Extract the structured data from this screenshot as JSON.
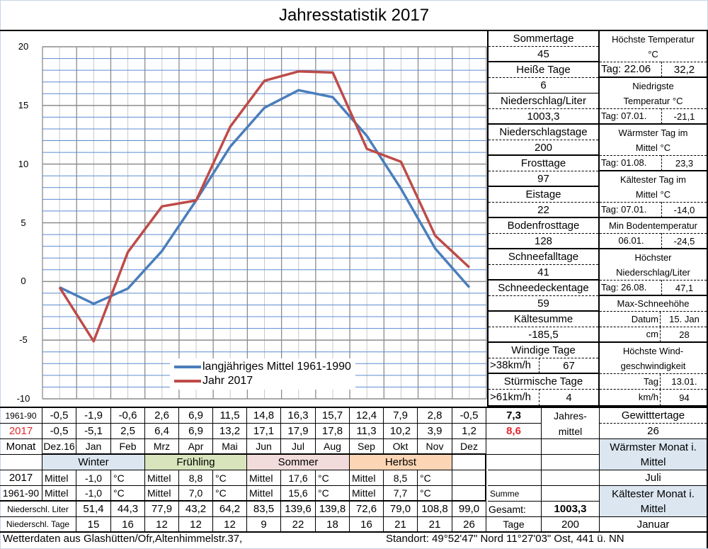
{
  "title": "Jahresstatistik 2017",
  "chart_data": {
    "type": "line",
    "title": "Jahresstatistik 2017",
    "categories": [
      "Dez.16",
      "Jan",
      "Feb",
      "Mrz",
      "Apr",
      "Mai",
      "Jun",
      "Jul",
      "Aug",
      "Sep",
      "Okt",
      "Nov",
      "Dez"
    ],
    "series": [
      {
        "name": "langjähriges Mittel 1961-1990",
        "color": "#4a7ebb",
        "values": [
          -0.5,
          -1.9,
          -0.6,
          2.6,
          6.9,
          11.5,
          14.8,
          16.3,
          15.7,
          12.4,
          7.9,
          2.8,
          -0.5
        ]
      },
      {
        "name": "Jahr 2017",
        "color": "#be4b48",
        "values": [
          -0.5,
          -5.1,
          2.5,
          6.4,
          6.9,
          13.2,
          17.1,
          17.9,
          17.8,
          11.3,
          10.2,
          3.9,
          1.2
        ]
      }
    ],
    "yticks": [
      "20",
      "15",
      "10",
      "5",
      "0",
      "-5",
      "-10"
    ],
    "ylim": [
      -10,
      20
    ],
    "xlabel": "",
    "ylabel": "",
    "grid": true,
    "legend_position": "lower center inside"
  },
  "legend": {
    "items": [
      {
        "label": "langjähriges Mittel 1961-1990",
        "color": "#4a7ebb"
      },
      {
        "label": "Jahr 2017",
        "color": "#be4b48"
      }
    ]
  },
  "right_panel": {
    "sommertage_label": "Sommertage",
    "sommertage_value": "45",
    "heisse_tage_label": "Heiße Tage",
    "heisse_tage_value": "6",
    "niederschlag_label": "Niederschlag/Liter",
    "niederschlag_value": "1003,3",
    "niederschlagstage_label": "Niederschlagstage",
    "niederschlagstage_value": "200",
    "frosttage_label": "Frosttage",
    "frosttage_value": "97",
    "eistage_label": "Eistage",
    "eistage_value": "22",
    "bodenfrosttage_label": "Bodenfrosttage",
    "bodenfrosttage_value": "128",
    "schneefalltage_label": "Schneefalltage",
    "schneefalltage_value": "41",
    "schneedeckentage_label": "Schneedeckentage",
    "schneedeckentage_value": "59",
    "kaeltesumme_label": "Kältesumme",
    "kaeltesumme_value": "-185,5",
    "windige_tage_label": "Windige Tage",
    "windige_tage_threshold": ">38km/h",
    "windige_tage_value": "67",
    "stuermische_tage_label": "Stürmische Tage",
    "stuermische_tage_threshold": ">61km/h",
    "stuermische_tage_value": "4",
    "hoechste_temp_label1": "Höchste Temperatur",
    "hoechste_temp_label2": "°C",
    "hoechste_temp_day": "Tag: 22.06",
    "hoechste_temp_value": "32,2",
    "niedrigste_temp_label1": "Niedrigste",
    "niedrigste_temp_label2": "Temperatur °C",
    "niedrigste_temp_day": "Tag: 07.01.",
    "niedrigste_temp_value": "-21,1",
    "waermster_tag_label1": "Wärmster Tag im",
    "waermster_tag_label2": "Mittel °C",
    "waermster_tag_day": "Tag: 01.08.",
    "waermster_tag_value": "23,3",
    "kaeltester_tag_label1": "Kältester Tag im",
    "kaeltester_tag_label2": "Mittel °C",
    "kaeltester_tag_day": "Tag: 07.01.",
    "kaeltester_tag_value": "-14,0",
    "min_boden_label": "Min Bodentemperatur",
    "min_boden_day": "06.01.",
    "min_boden_value": "-24,5",
    "hoechster_ns_label1": "Höchster",
    "hoechster_ns_label2": "Niederschlag/Liter",
    "hoechster_ns_day": "Tag: 26.08.",
    "hoechster_ns_value": "47,1",
    "max_schnee_label": "Max-Schneehöhe",
    "max_schnee_datum_label": "Datum",
    "max_schnee_datum": "15. Jan",
    "max_schnee_cm_label": "cm",
    "max_schnee_cm": "28",
    "wind_label1": "Höchste Wind-",
    "wind_label2": "geschwindigkeit",
    "wind_tag_label": "Tag",
    "wind_tag": "13.01.",
    "wind_kmh_label": "km/h",
    "wind_kmh": "94"
  },
  "table": {
    "row_1961_label": "1961-90",
    "row_2017_label": "2017",
    "row_month_label": "Monat",
    "months": [
      "Dez.16",
      "Jan",
      "Feb",
      "Mrz",
      "Apr",
      "Mai",
      "Jun",
      "Jul",
      "Aug",
      "Sep",
      "Okt",
      "Nov",
      "Dez"
    ],
    "values_1961": [
      "-0,5",
      "-1,9",
      "-0,6",
      "2,6",
      "6,9",
      "11,5",
      "14,8",
      "16,3",
      "15,7",
      "12,4",
      "7,9",
      "2,8",
      "-0,5"
    ],
    "values_2017": [
      "-0,5",
      "-5,1",
      "2,5",
      "6,4",
      "6,9",
      "13,2",
      "17,1",
      "17,9",
      "17,8",
      "11,3",
      "10,2",
      "3,9",
      "1,2"
    ],
    "jahresmittel_1961": "7,3",
    "jahresmittel_2017": "8,6",
    "jahresmittel_label1": "Jahres-",
    "jahresmittel_label2": "mittel",
    "gewittertage_label": "Gewitttertage",
    "gewittertage_value": "26",
    "waermster_monat_label1": "Wärmster Monat i.",
    "waermster_monat_label2": "Mittel",
    "waermster_monat_value": "Juli",
    "kaeltester_monat_label1": "Kältester Monat i.",
    "kaeltester_monat_label2": "Mittel",
    "kaeltester_monat_value": "Januar",
    "seasons": [
      {
        "name": "Winter",
        "color": "#dce6f1",
        "mittel_label": "Mittel",
        "v2017": "-1,0",
        "v1961": "-1,0",
        "unit": "°C"
      },
      {
        "name": "Frühling",
        "color": "#d8e4bc",
        "mittel_label": "Mittel",
        "v2017": "8,8",
        "v1961": "7,0",
        "unit": "°C"
      },
      {
        "name": "Sommer",
        "color": "#f2dcdb",
        "mittel_label": "Mittel",
        "v2017": "17,6",
        "v1961": "15,6",
        "unit": "°C"
      },
      {
        "name": "Herbst",
        "color": "#fcd5b4",
        "mittel_label": "Mittel",
        "v2017": "8,5",
        "v1961": "7,7",
        "unit": "°C"
      }
    ],
    "season_row_2017_label": "2017",
    "season_row_1961_label": "1961-90",
    "summe_label": "Summe",
    "niederschl_liter_label": "Niederschl. Liter",
    "niederschl_liter": [
      "51,4",
      "44,3",
      "77,9",
      "43,2",
      "64,2",
      "83,5",
      "139,6",
      "139,8",
      "72,6",
      "79,0",
      "108,8",
      "99,0"
    ],
    "gesamt_label": "Gesamt:",
    "gesamt_value": "1003,3",
    "niederschl_tage_label": "Niederschl. Tage",
    "niederschl_tage": [
      "15",
      "16",
      "12",
      "12",
      "12",
      "9",
      "22",
      "18",
      "16",
      "21",
      "21",
      "26"
    ],
    "tage_label": "Tage",
    "tage_value": "200"
  },
  "footer": {
    "location": "Wetterdaten aus Glashütten/Ofr,Altenhimmelstr.37,",
    "standort": "Standort:  49°52'47\" Nord   11°27'03\" Ost, 441 ü. NN"
  }
}
